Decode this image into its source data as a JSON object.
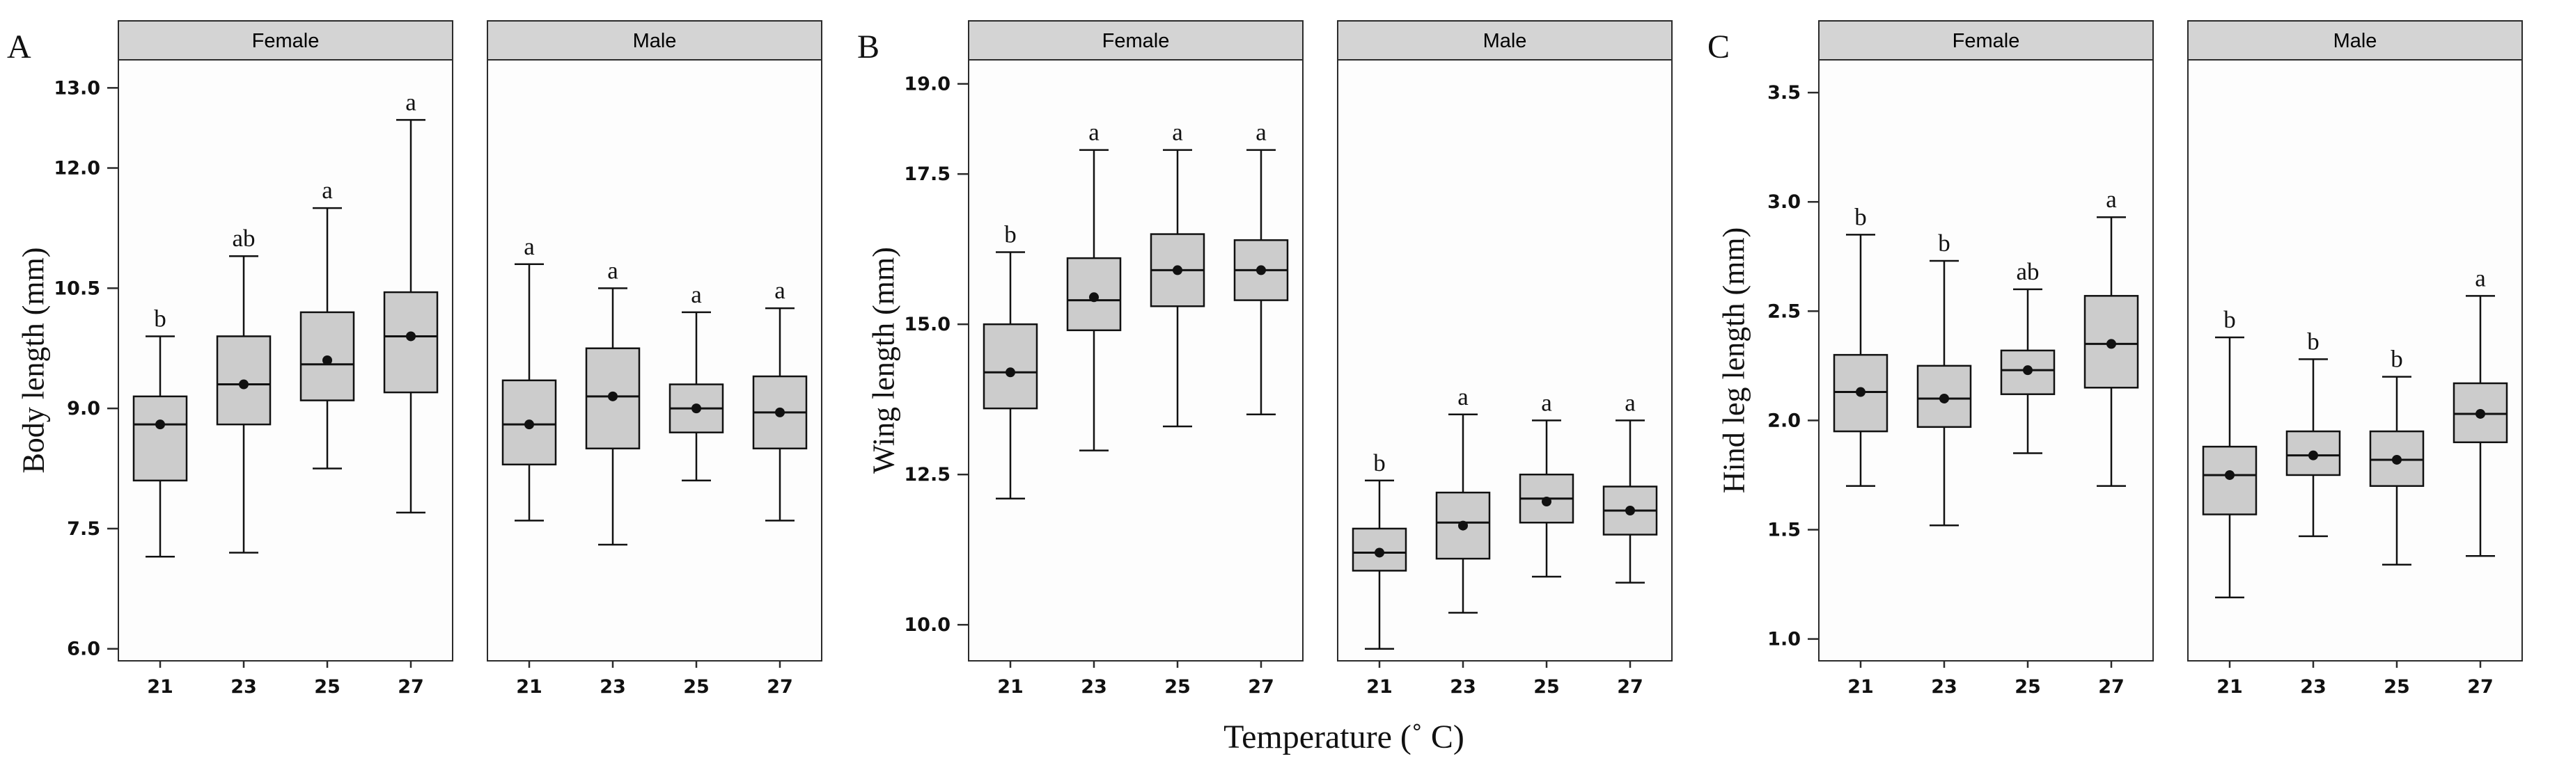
{
  "xlabel": "Temperature (˚ C)",
  "style": {
    "background": "#ffffff",
    "box_fill": "#cccccc",
    "strip_fill": "#d4d4d4",
    "panel_fill": "#fdfdfd",
    "border": "#2b2b2b",
    "ink": "#111111"
  },
  "chart_data": [
    {
      "type": "boxplot",
      "panel": "A",
      "ylabel": "Body length (mm)",
      "xlabel_shared": "Temperature (˚ C)",
      "ylim": [
        5.85,
        13.35
      ],
      "yticks": [
        6.0,
        7.5,
        9.0,
        10.5,
        12.0,
        13.0
      ],
      "ytick_labels": [
        "6.0",
        "7.5",
        "9.0",
        "10.5",
        "12.0",
        "13.0"
      ],
      "categories": [
        "21",
        "23",
        "25",
        "27"
      ],
      "legend": "none",
      "facets": [
        {
          "name": "Female",
          "boxes": [
            {
              "temp": "21",
              "low": 7.15,
              "q1": 8.1,
              "median": 8.8,
              "mean": 8.8,
              "q3": 9.15,
              "high": 9.9,
              "label": "b"
            },
            {
              "temp": "23",
              "low": 7.2,
              "q1": 8.8,
              "median": 9.3,
              "mean": 9.3,
              "q3": 9.9,
              "high": 10.9,
              "label": "ab"
            },
            {
              "temp": "25",
              "low": 8.25,
              "q1": 9.1,
              "median": 9.55,
              "mean": 9.6,
              "q3": 10.2,
              "high": 11.5,
              "label": "a"
            },
            {
              "temp": "27",
              "low": 7.7,
              "q1": 9.2,
              "median": 9.9,
              "mean": 9.9,
              "q3": 10.45,
              "high": 12.6,
              "label": "a"
            }
          ]
        },
        {
          "name": "Male",
          "boxes": [
            {
              "temp": "21",
              "low": 7.6,
              "q1": 8.3,
              "median": 8.8,
              "mean": 8.8,
              "q3": 9.35,
              "high": 10.8,
              "label": "a"
            },
            {
              "temp": "23",
              "low": 7.3,
              "q1": 8.5,
              "median": 9.15,
              "mean": 9.15,
              "q3": 9.75,
              "high": 10.5,
              "label": "a"
            },
            {
              "temp": "25",
              "low": 8.1,
              "q1": 8.7,
              "median": 9.0,
              "mean": 9.0,
              "q3": 9.3,
              "high": 10.2,
              "label": "a"
            },
            {
              "temp": "27",
              "low": 7.6,
              "q1": 8.5,
              "median": 8.95,
              "mean": 8.95,
              "q3": 9.4,
              "high": 10.25,
              "label": "a"
            }
          ]
        }
      ]
    },
    {
      "type": "boxplot",
      "panel": "B",
      "ylabel": "Wing length (mm)",
      "xlabel_shared": "Temperature (˚ C)",
      "ylim": [
        9.4,
        19.4
      ],
      "yticks": [
        10.0,
        12.5,
        15.0,
        17.5,
        19.0
      ],
      "ytick_labels": [
        "10.0",
        "12.5",
        "15.0",
        "17.5",
        "19.0"
      ],
      "categories": [
        "21",
        "23",
        "25",
        "27"
      ],
      "legend": "none",
      "facets": [
        {
          "name": "Female",
          "boxes": [
            {
              "temp": "21",
              "low": 12.1,
              "q1": 13.6,
              "median": 14.2,
              "mean": 14.2,
              "q3": 15.0,
              "high": 16.2,
              "label": "b"
            },
            {
              "temp": "23",
              "low": 12.9,
              "q1": 14.9,
              "median": 15.4,
              "mean": 15.45,
              "q3": 16.1,
              "high": 17.9,
              "label": "a"
            },
            {
              "temp": "25",
              "low": 13.3,
              "q1": 15.3,
              "median": 15.9,
              "mean": 15.9,
              "q3": 16.5,
              "high": 17.9,
              "label": "a"
            },
            {
              "temp": "27",
              "low": 13.5,
              "q1": 15.4,
              "median": 15.9,
              "mean": 15.9,
              "q3": 16.4,
              "high": 17.9,
              "label": "a"
            }
          ]
        },
        {
          "name": "Male",
          "boxes": [
            {
              "temp": "21",
              "low": 9.6,
              "q1": 10.9,
              "median": 11.2,
              "mean": 11.2,
              "q3": 11.6,
              "high": 12.4,
              "label": "b"
            },
            {
              "temp": "23",
              "low": 10.2,
              "q1": 11.1,
              "median": 11.7,
              "mean": 11.65,
              "q3": 12.2,
              "high": 13.5,
              "label": "a"
            },
            {
              "temp": "25",
              "low": 10.8,
              "q1": 11.7,
              "median": 12.1,
              "mean": 12.05,
              "q3": 12.5,
              "high": 13.4,
              "label": "a"
            },
            {
              "temp": "27",
              "low": 10.7,
              "q1": 11.5,
              "median": 11.9,
              "mean": 11.9,
              "q3": 12.3,
              "high": 13.4,
              "label": "a"
            }
          ]
        }
      ]
    },
    {
      "type": "boxplot",
      "panel": "C",
      "ylabel": "Hind leg length (mm)",
      "xlabel_shared": "Temperature (˚ C)",
      "ylim": [
        0.9,
        3.65
      ],
      "yticks": [
        1.0,
        1.5,
        2.0,
        2.5,
        3.0,
        3.5
      ],
      "ytick_labels": [
        "1.0",
        "1.5",
        "2.0",
        "2.5",
        "3.0",
        "3.5"
      ],
      "categories": [
        "21",
        "23",
        "25",
        "27"
      ],
      "legend": "none",
      "facets": [
        {
          "name": "Female",
          "boxes": [
            {
              "temp": "21",
              "low": 1.7,
              "q1": 1.95,
              "median": 2.13,
              "mean": 2.13,
              "q3": 2.3,
              "high": 2.85,
              "label": "b"
            },
            {
              "temp": "23",
              "low": 1.52,
              "q1": 1.97,
              "median": 2.1,
              "mean": 2.1,
              "q3": 2.25,
              "high": 2.73,
              "label": "b"
            },
            {
              "temp": "25",
              "low": 1.85,
              "q1": 2.12,
              "median": 2.23,
              "mean": 2.23,
              "q3": 2.32,
              "high": 2.6,
              "label": "ab"
            },
            {
              "temp": "27",
              "low": 1.7,
              "q1": 2.15,
              "median": 2.35,
              "mean": 2.35,
              "q3": 2.57,
              "high": 2.93,
              "label": "a"
            }
          ]
        },
        {
          "name": "Male",
          "boxes": [
            {
              "temp": "21",
              "low": 1.19,
              "q1": 1.57,
              "median": 1.75,
              "mean": 1.75,
              "q3": 1.88,
              "high": 2.38,
              "label": "b"
            },
            {
              "temp": "23",
              "low": 1.47,
              "q1": 1.75,
              "median": 1.84,
              "mean": 1.84,
              "q3": 1.95,
              "high": 2.28,
              "label": "b"
            },
            {
              "temp": "25",
              "low": 1.34,
              "q1": 1.7,
              "median": 1.82,
              "mean": 1.82,
              "q3": 1.95,
              "high": 2.2,
              "label": "b"
            },
            {
              "temp": "27",
              "low": 1.38,
              "q1": 1.9,
              "median": 2.03,
              "mean": 2.03,
              "q3": 2.17,
              "high": 2.57,
              "label": "a"
            }
          ]
        }
      ]
    }
  ]
}
